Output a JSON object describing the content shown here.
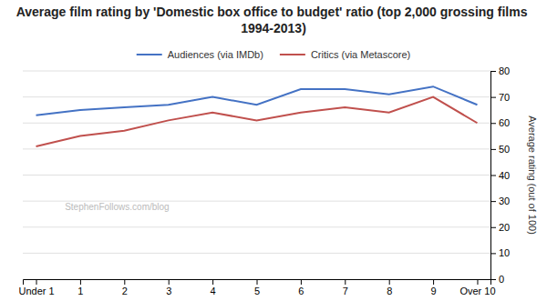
{
  "chart_data": {
    "type": "line",
    "title": "Average film rating by 'Domestic box office to budget' ratio (top 2,000 grossing films 1994-2013)",
    "y_label": "Average rating (out of 100)",
    "annotations": [
      "StephenFollows.com/blog"
    ],
    "categories": [
      "Under 1",
      "1",
      "2",
      "3",
      "4",
      "5",
      "6",
      "7",
      "8",
      "9",
      "Over 10"
    ],
    "series": [
      {
        "name": "Audiences (via IMDb)",
        "color": "#4472C4",
        "values": [
          63,
          65,
          66,
          67,
          70,
          67,
          73,
          73,
          71,
          74,
          67
        ]
      },
      {
        "name": "Critics (via Metascore)",
        "color": "#C0504D",
        "values": [
          51,
          55,
          57,
          61,
          64,
          61,
          64,
          66,
          64,
          70,
          60
        ]
      }
    ],
    "ylim": [
      0,
      80
    ],
    "yticks": [
      0,
      10,
      20,
      30,
      40,
      50,
      60,
      70,
      80
    ],
    "grid": true,
    "legend": "top"
  }
}
